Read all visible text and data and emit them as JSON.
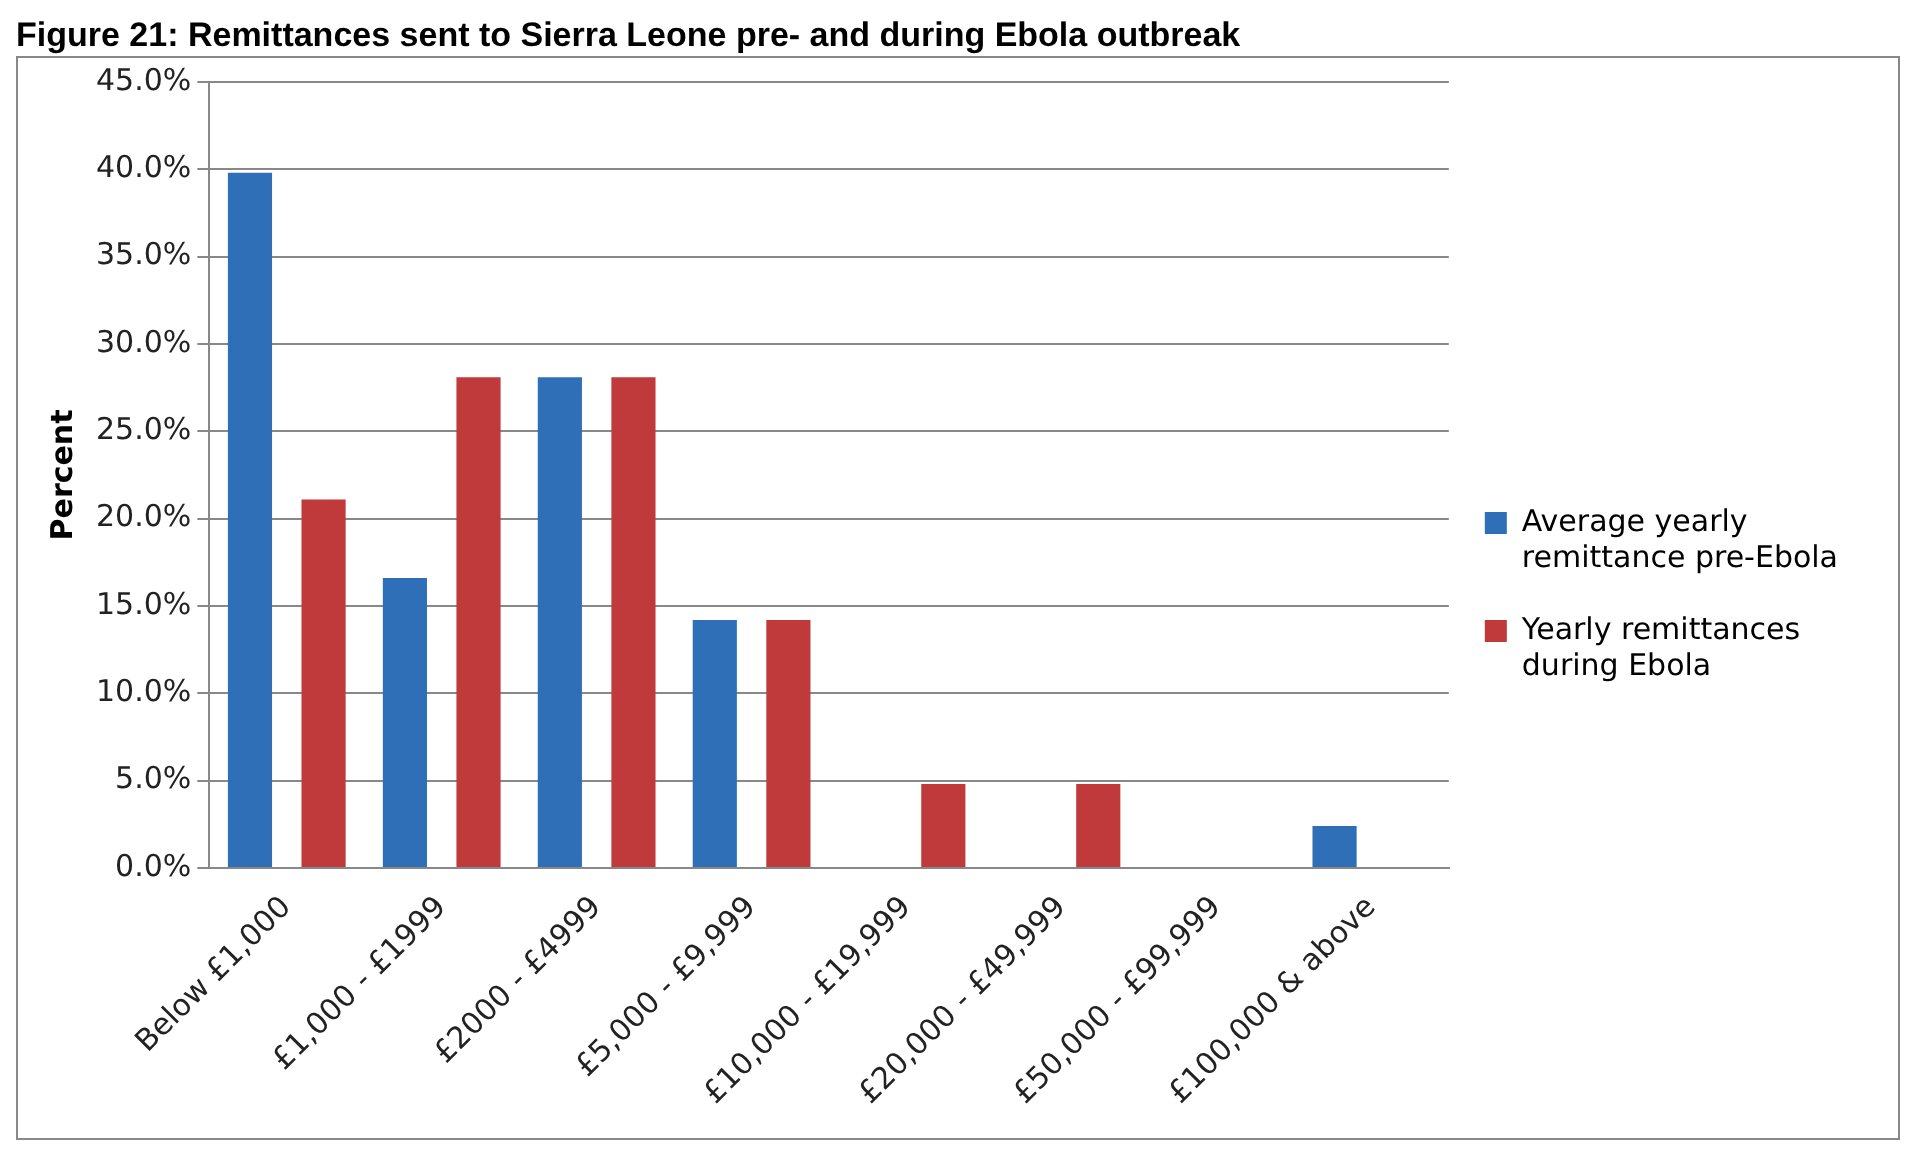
{
  "chart_data": {
    "type": "bar",
    "title": "Figure 21: Remittances sent to Sierra Leone pre- and during Ebola outbreak",
    "ylabel": "Percent",
    "categories": [
      "Below £1,000",
      "£1,000 - £1999",
      "£2000 - £4999",
      "£5,000 - £9,999",
      "£10,000 - £19,999",
      "£20,000 - £49,999",
      "£50,000 - £99,999",
      "£100,000 & above"
    ],
    "series": [
      {
        "name": "Average yearly remittance pre-Ebola",
        "color": "#2e6fb8",
        "values": [
          39.8,
          16.6,
          28.1,
          14.2,
          0,
          0,
          0,
          2.4
        ]
      },
      {
        "name": "Yearly remittances during Ebola",
        "color": "#c0393b",
        "values": [
          21.1,
          28.1,
          28.1,
          14.2,
          4.8,
          4.8,
          0,
          0
        ]
      }
    ],
    "ylim": [
      0,
      45
    ],
    "yticks": [
      {
        "value": 0,
        "label": "0.0%"
      },
      {
        "value": 5,
        "label": "5.0%"
      },
      {
        "value": 10,
        "label": "10.0%"
      },
      {
        "value": 15,
        "label": "15.0%"
      },
      {
        "value": 20,
        "label": "20.0%"
      },
      {
        "value": 25,
        "label": "25.0%"
      },
      {
        "value": 30,
        "label": "30.0%"
      },
      {
        "value": 35,
        "label": "35.0%"
      },
      {
        "value": 40,
        "label": "40.0%"
      },
      {
        "value": 45,
        "label": "45.0%"
      }
    ],
    "grid": "y",
    "legend": "right"
  }
}
